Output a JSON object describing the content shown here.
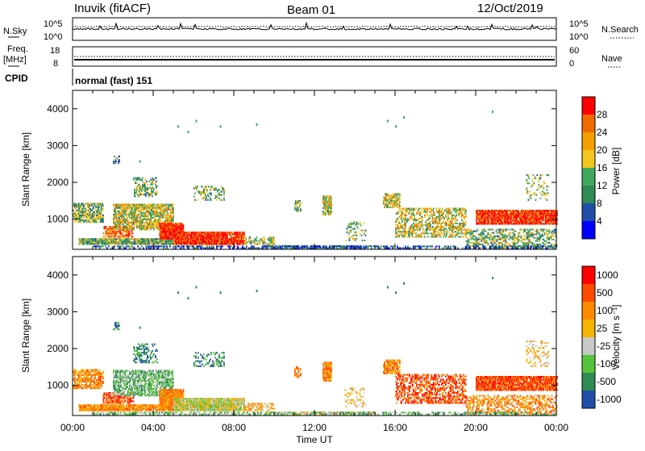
{
  "header": {
    "station": "Inuvik (fitACF)",
    "beam": "Beam 01",
    "date": "12/Oct/2019"
  },
  "strips": {
    "nsky_label": "N.Sky",
    "nsky_ticks": [
      "10^5",
      "10^0"
    ],
    "nsearch_label": "N.Search",
    "nsearch_ticks": [
      "10^5",
      "10^0"
    ],
    "freq_label": "Freq.",
    "freq_unit": "[MHz]",
    "freq_ticks": [
      "18",
      "8"
    ],
    "nave_label": "Nave",
    "nave_ticks": [
      "60",
      "0"
    ],
    "cpid_label": "CPID",
    "cpid_text": "normal (fast) 151"
  },
  "colors": {
    "power": [
      "#0000ff",
      "#1f4fa8",
      "#2f8a54",
      "#3fa85f",
      "#f2c520",
      "#f5a000",
      "#f06a00",
      "#ff0000"
    ],
    "velocity": [
      "#ff0000",
      "#ff4a00",
      "#ff8a00",
      "#f5b400",
      "#c8c8c8",
      "#55c43a",
      "#2f8a54",
      "#1f4fa8"
    ]
  },
  "chart_data": [
    {
      "type": "heatmap",
      "name": "power",
      "ylabel": "Slant Range [km]",
      "yticks": [
        "1000",
        "2000",
        "3000",
        "4000"
      ],
      "xticks": [
        "00:00",
        "04:00",
        "08:00",
        "12:00",
        "16:00",
        "20:00",
        "00:00"
      ],
      "xlabel": "Time UT",
      "colorbar_label": "Power [dB]",
      "colorbar_ticks": [
        "4",
        "8",
        "12",
        "16",
        "20",
        "24",
        "28"
      ],
      "ylim": [
        180,
        4500
      ],
      "xlim": [
        0,
        24
      ]
    },
    {
      "type": "heatmap",
      "name": "velocity",
      "ylabel": "Slant Range [km]",
      "yticks": [
        "1000",
        "2000",
        "3000",
        "4000"
      ],
      "xticks": [
        "00:00",
        "04:00",
        "08:00",
        "12:00",
        "16:00",
        "20:00",
        "00:00"
      ],
      "xlabel": "Time UT",
      "colorbar_label": "Velocity [m s⁻¹]",
      "colorbar_ticks": [
        "1000",
        "500",
        "100",
        "25",
        "-25",
        "-100",
        "-500",
        "-1000"
      ],
      "ylim": [
        180,
        4500
      ],
      "xlim": [
        0,
        24
      ]
    }
  ]
}
